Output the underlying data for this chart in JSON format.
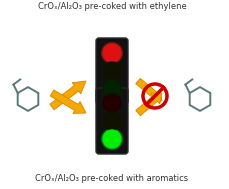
{
  "title_top": "CrOₓ/Al₂O₃ pre-coked with ethylene",
  "title_bottom": "CrOₓ/Al₂O₃ pre-coked with aromatics",
  "bg_color": "#ffffff",
  "traffic_light_body": "#111111",
  "traffic_light_border": "#2a2a2a",
  "red_light_on": "#dd1111",
  "red_light_glow": "#ff3300",
  "green_light_on": "#00ee00",
  "red_light_off": "#220000",
  "green_light_off": "#002200",
  "mid_light_off": "#111100",
  "arrow_color": "#f5a800",
  "arrow_edge": "#d48800",
  "no_symbol_color": "#cc0000",
  "molecule_color": "#5a7a7a",
  "font_size": 6.0
}
